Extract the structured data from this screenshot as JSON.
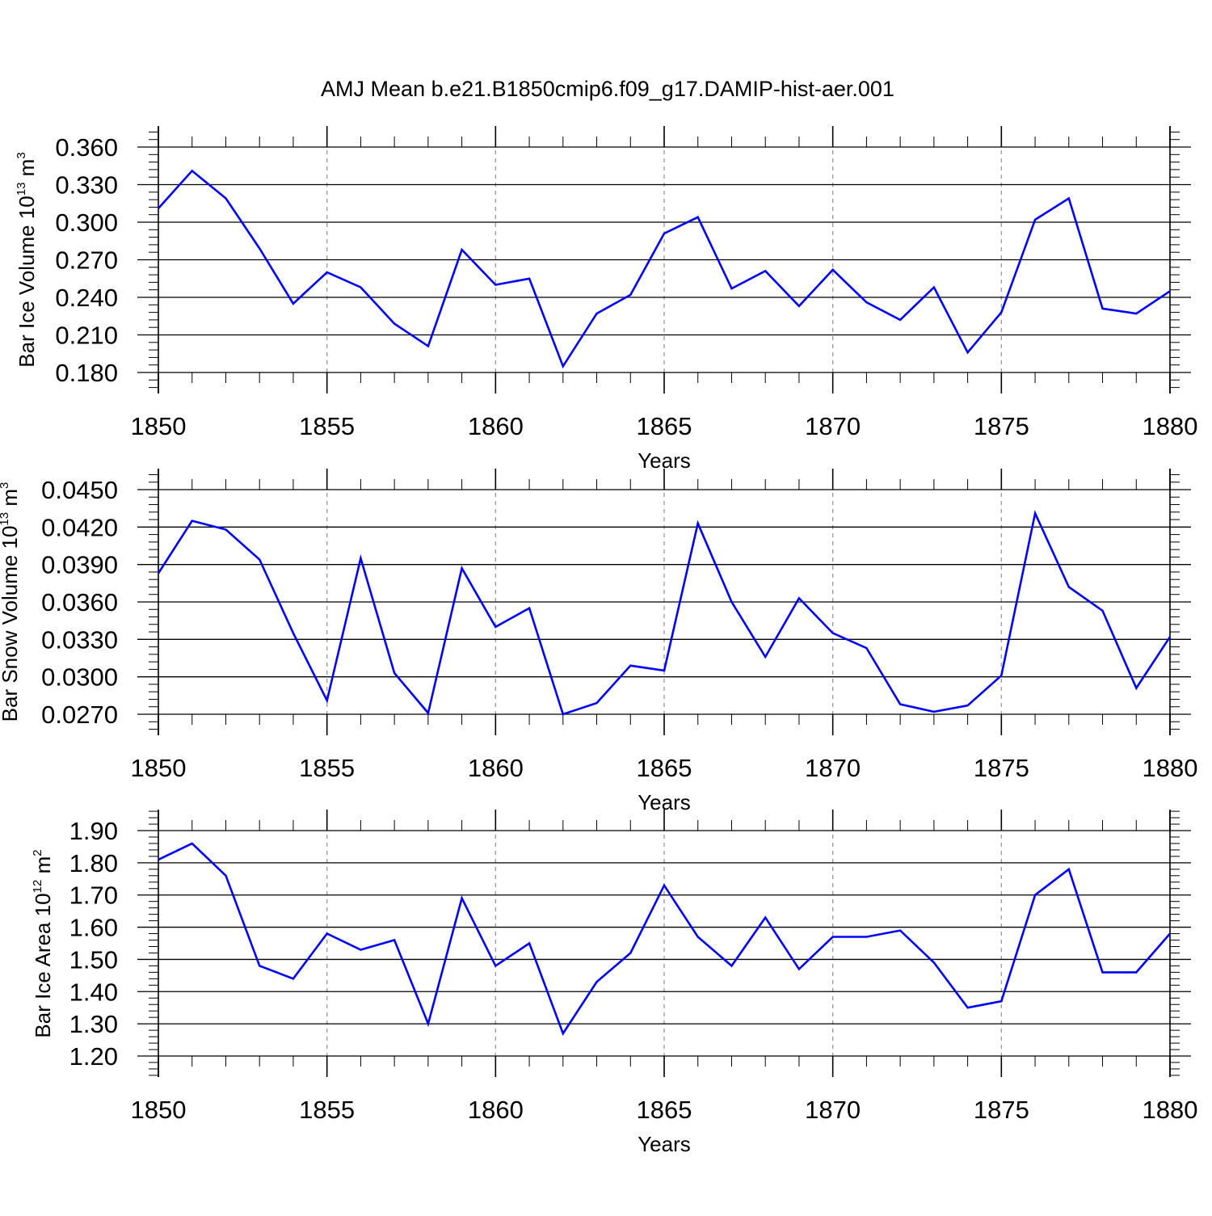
{
  "title": "AMJ Mean b.e21.B1850cmip6.f09_g17.DAMIP-hist-aer.001",
  "colors": {
    "series": "#0000ff",
    "axis": "#000000",
    "grid": "#999999"
  },
  "chart_data": [
    {
      "type": "line",
      "ylabel": {
        "main": "Bar Ice Volume 10",
        "sup1": "13",
        "mid": " m",
        "sup2": "3"
      },
      "xlabel": "Years",
      "xlim": [
        1850,
        1880
      ],
      "ylim": [
        0.18,
        0.36
      ],
      "xticks": [
        "1850",
        "1855",
        "1860",
        "1865",
        "1870",
        "1875",
        "1880"
      ],
      "yticks": [
        "0.180",
        "0.210",
        "0.240",
        "0.270",
        "0.300",
        "0.330",
        "0.360"
      ],
      "grid": "vertical dashed at major x ticks",
      "x": [
        1850,
        1851,
        1852,
        1853,
        1854,
        1855,
        1856,
        1857,
        1858,
        1859,
        1860,
        1861,
        1862,
        1863,
        1864,
        1865,
        1866,
        1867,
        1868,
        1869,
        1870,
        1871,
        1872,
        1873,
        1874,
        1875,
        1876,
        1877,
        1878,
        1879,
        1880
      ],
      "values": [
        0.311,
        0.341,
        0.319,
        0.279,
        0.235,
        0.26,
        0.248,
        0.219,
        0.201,
        0.278,
        0.25,
        0.255,
        0.185,
        0.227,
        0.242,
        0.291,
        0.304,
        0.247,
        0.261,
        0.233,
        0.262,
        0.236,
        0.222,
        0.248,
        0.196,
        0.228,
        0.302,
        0.319,
        0.231,
        0.227,
        0.245
      ]
    },
    {
      "type": "line",
      "ylabel": {
        "main": "Bar Snow Volume 10",
        "sup1": "13",
        "mid": " m",
        "sup2": "3"
      },
      "xlabel": "Years",
      "xlim": [
        1850,
        1880
      ],
      "ylim": [
        0.027,
        0.045
      ],
      "xticks": [
        "1850",
        "1855",
        "1860",
        "1865",
        "1870",
        "1875",
        "1880"
      ],
      "yticks": [
        "0.0270",
        "0.0300",
        "0.0330",
        "0.0360",
        "0.0390",
        "0.0420",
        "0.0450"
      ],
      "grid": "vertical dashed at major x ticks",
      "x": [
        1850,
        1851,
        1852,
        1853,
        1854,
        1855,
        1856,
        1857,
        1858,
        1859,
        1860,
        1861,
        1862,
        1863,
        1864,
        1865,
        1866,
        1867,
        1868,
        1869,
        1870,
        1871,
        1872,
        1873,
        1874,
        1875,
        1876,
        1877,
        1878,
        1879,
        1880
      ],
      "values": [
        0.0383,
        0.0425,
        0.0418,
        0.0394,
        0.0335,
        0.0281,
        0.0395,
        0.0303,
        0.0271,
        0.0387,
        0.034,
        0.0355,
        0.027,
        0.0279,
        0.0309,
        0.0305,
        0.0423,
        0.036,
        0.0316,
        0.0363,
        0.0335,
        0.0323,
        0.0278,
        0.0272,
        0.0277,
        0.0301,
        0.0431,
        0.0372,
        0.0353,
        0.0291,
        0.0332
      ]
    },
    {
      "type": "line",
      "ylabel": {
        "main": "Bar Ice Area 10",
        "sup1": "12",
        "mid": " m",
        "sup2": "2"
      },
      "xlabel": "Years",
      "xlim": [
        1850,
        1880
      ],
      "ylim": [
        1.2,
        1.9
      ],
      "xticks": [
        "1850",
        "1855",
        "1860",
        "1865",
        "1870",
        "1875",
        "1880"
      ],
      "yticks": [
        "1.20",
        "1.30",
        "1.40",
        "1.50",
        "1.60",
        "1.70",
        "1.80",
        "1.90"
      ],
      "grid": "vertical dashed at major x ticks",
      "x": [
        1850,
        1851,
        1852,
        1853,
        1854,
        1855,
        1856,
        1857,
        1858,
        1859,
        1860,
        1861,
        1862,
        1863,
        1864,
        1865,
        1866,
        1867,
        1868,
        1869,
        1870,
        1871,
        1872,
        1873,
        1874,
        1875,
        1876,
        1877,
        1878,
        1879,
        1880
      ],
      "values": [
        1.81,
        1.86,
        1.76,
        1.48,
        1.44,
        1.58,
        1.53,
        1.56,
        1.3,
        1.69,
        1.48,
        1.55,
        1.27,
        1.43,
        1.52,
        1.73,
        1.57,
        1.48,
        1.63,
        1.47,
        1.57,
        1.57,
        1.59,
        1.49,
        1.35,
        1.37,
        1.7,
        1.78,
        1.46,
        1.46,
        1.58
      ]
    }
  ]
}
